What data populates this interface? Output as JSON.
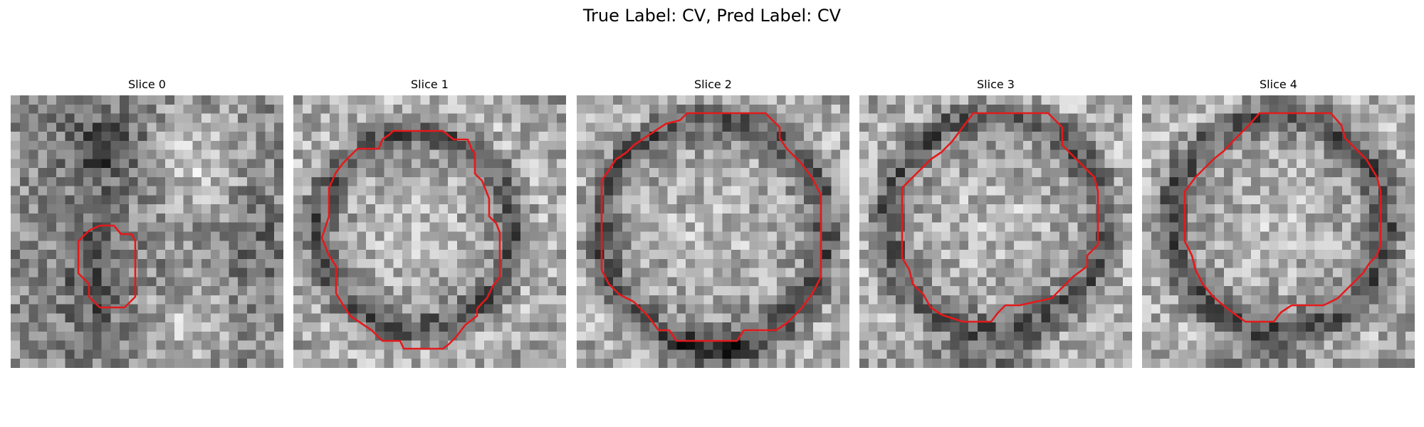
{
  "figure": {
    "suptitle": "True Label: CV, Pred Label: CV"
  },
  "panels": [
    {
      "title": "Slice 0"
    },
    {
      "title": "Slice 1"
    },
    {
      "title": "Slice 2"
    },
    {
      "title": "Slice 3"
    },
    {
      "title": "Slice 4"
    }
  ],
  "colors": {
    "contour": "#e31a1c"
  }
}
